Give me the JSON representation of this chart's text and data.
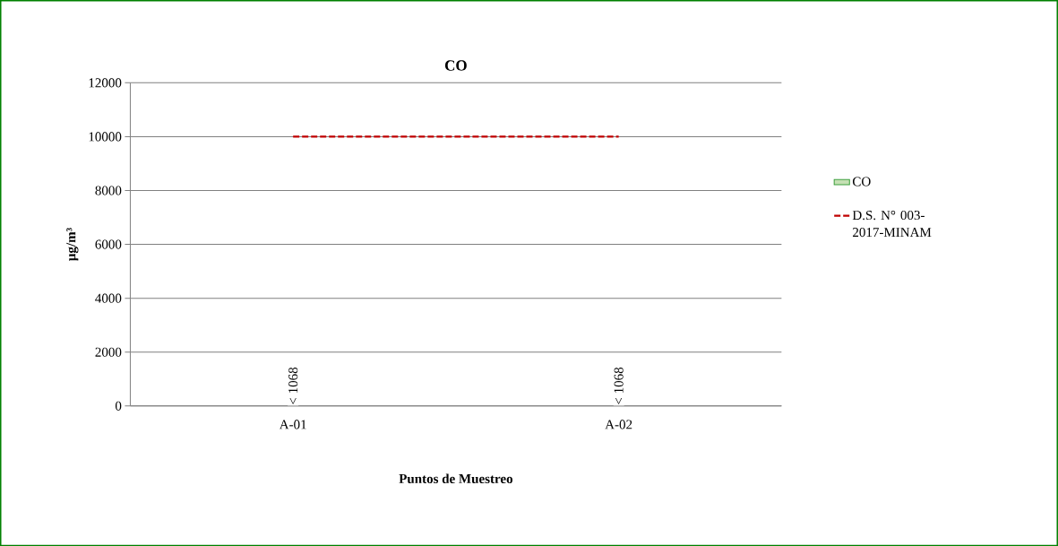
{
  "chart_data": {
    "type": "bar",
    "title": "CO",
    "xlabel": "Puntos de Muestreo",
    "ylabel": "µg/m³",
    "categories": [
      "A-01",
      "A-02"
    ],
    "series": [
      {
        "name": "CO",
        "color": "#c5e0b4",
        "values": [
          null,
          null
        ],
        "value_labels": [
          "< 1068",
          "< 1068"
        ]
      },
      {
        "name": "D.S. N° 003-2017-MINAM",
        "type": "line",
        "color": "#c00000",
        "line_style": "dashed",
        "values": [
          10000,
          10000
        ]
      }
    ],
    "ylim": [
      0,
      12000
    ],
    "yticks": [
      0,
      2000,
      4000,
      6000,
      8000,
      10000,
      12000
    ],
    "grid": "y",
    "legend": "right"
  }
}
